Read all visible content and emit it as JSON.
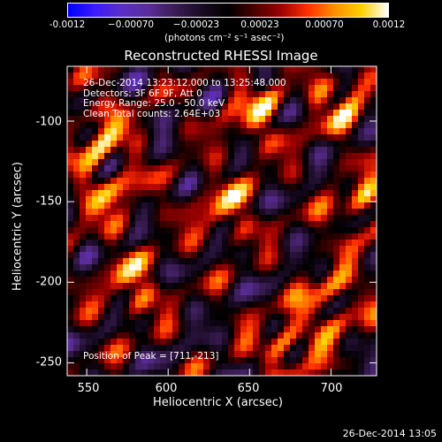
{
  "colorbar": {
    "ticks": [
      "-0.0012",
      "−0.00070",
      "−0.00023",
      "0.00023",
      "0.00070",
      "0.0012"
    ],
    "unit_label": "(photons cm⁻² s⁻¹ asec⁻²)",
    "colors": [
      "#0000ff",
      "#3b1aff",
      "#5a2ec8",
      "#5b2d9a",
      "#3a1d55",
      "#1a0a25",
      "#000000",
      "#4a0000",
      "#a00000",
      "#ff3000",
      "#ff9000",
      "#ffd000",
      "#ffffff"
    ]
  },
  "footer_timestamp": "26-Dec-2014 13:05",
  "chart_data": {
    "type": "heatmap",
    "title": "Reconstructed RHESSI Image",
    "xlabel": "Heliocentric X (arcsec)",
    "ylabel": "Heliocentric Y (arcsec)",
    "xlim": [
      538,
      728
    ],
    "ylim": [
      -258,
      -66
    ],
    "x_ticks": [
      "550",
      "600",
      "650",
      "700"
    ],
    "x_tick_values": [
      550,
      600,
      650,
      700
    ],
    "y_ticks": [
      "-100",
      "-150",
      "-200",
      "-250"
    ],
    "y_tick_values": [
      -100,
      -150,
      -200,
      -250
    ],
    "value_range": [
      -0.0012,
      0.0012
    ],
    "annotations": [
      "26-Dec-2014 13:23:12.000 to 13:25:48.000",
      "Detectors: 3F 6F 9F, Att 0",
      "Energy Range: 25.0 - 50.0 keV",
      "Clean     Total counts: 2.64E+03"
    ],
    "peak_label": "Position of Peak = [711,-213]",
    "peak": [
      711,
      -213
    ]
  }
}
